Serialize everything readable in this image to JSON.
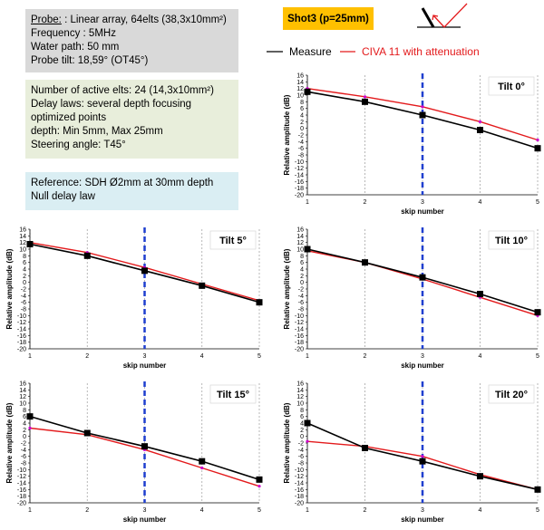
{
  "info": {
    "probe": {
      "label": "Probe:",
      "rest": " : Linear array, 64elts (38,3x10mm²)",
      "lines": [
        "Frequency : 5MHz",
        "Water path: 50 mm",
        "Probe tilt: 18,59° (OT45°)"
      ]
    },
    "active": {
      "lines": [
        "Number of active elts: 24 (14,3x10mm²)",
        "Delay laws: several depth focusing",
        "optimized points",
        "depth: Min 5mm, Max 25mm",
        "Steering angle: T45°"
      ]
    },
    "reference": {
      "lines": [
        "Reference: SDH Ø2mm at 30mm depth",
        "Null delay law"
      ]
    },
    "shot_label": "Shot3 (p=25mm)"
  },
  "legend": {
    "measure": "Measure",
    "civa": "CIVA 11 with attenuation"
  },
  "colors": {
    "measure": "#000000",
    "civa": "#e31a1c",
    "civa_marker": "#cc00cc",
    "marker_line": "#1f3fcf",
    "grid": "#a6a6a6",
    "shot_bg": "#ffc000",
    "probe_bg": "#d9d9d9",
    "active_bg": "#e8eedb",
    "ref_bg": "#daeef3"
  },
  "chart_data": [
    {
      "type": "line",
      "title": "Tilt 0°",
      "xlabel": "skip number",
      "ylabel": "Relative amplitude (dB)",
      "x": [
        1,
        2,
        3,
        4,
        5
      ],
      "ylim": [
        -20,
        16
      ],
      "yticks": [
        16,
        14,
        12,
        10,
        8,
        6,
        4,
        2,
        0,
        -2,
        -4,
        -6,
        -8,
        -10,
        -12,
        -14,
        -16,
        -18,
        -20
      ],
      "marker_x": 3,
      "series": [
        {
          "name": "Measure",
          "values": [
            11,
            8,
            4,
            -0.5,
            -6
          ]
        },
        {
          "name": "CIVA 11 with attenuation",
          "values": [
            12,
            9.5,
            6.5,
            2,
            -3.5
          ]
        }
      ]
    },
    {
      "type": "line",
      "title": "Tilt 5°",
      "xlabel": "skip number",
      "ylabel": "Relative amplitude (dB)",
      "x": [
        1,
        2,
        3,
        4,
        5
      ],
      "ylim": [
        -20,
        16
      ],
      "yticks": [
        16,
        14,
        12,
        10,
        8,
        6,
        4,
        2,
        0,
        -2,
        -4,
        -6,
        -8,
        -10,
        -12,
        -14,
        -16,
        -18,
        -20
      ],
      "marker_x": 3,
      "series": [
        {
          "name": "Measure",
          "values": [
            11.5,
            8,
            3.5,
            -1,
            -6
          ]
        },
        {
          "name": "CIVA 11 with attenuation",
          "values": [
            12,
            9,
            4.5,
            -0.5,
            -5.5
          ]
        }
      ]
    },
    {
      "type": "line",
      "title": "Tilt 10°",
      "xlabel": "skip number",
      "ylabel": "Relative amplitude (dB)",
      "x": [
        1,
        2,
        3,
        4,
        5
      ],
      "ylim": [
        -20,
        16
      ],
      "yticks": [
        16,
        14,
        12,
        10,
        8,
        6,
        4,
        2,
        0,
        -2,
        -4,
        -6,
        -8,
        -10,
        -12,
        -14,
        -16,
        -18,
        -20
      ],
      "marker_x": 3,
      "series": [
        {
          "name": "Measure",
          "values": [
            10,
            6,
            1.5,
            -3.5,
            -9
          ]
        },
        {
          "name": "CIVA 11 with attenuation",
          "values": [
            9.5,
            6,
            1,
            -4.5,
            -10
          ]
        }
      ]
    },
    {
      "type": "line",
      "title": "Tilt 15°",
      "xlabel": "skip number",
      "ylabel": "Relative amplitude (dB)",
      "x": [
        1,
        2,
        3,
        4,
        5
      ],
      "ylim": [
        -20,
        16
      ],
      "yticks": [
        16,
        14,
        12,
        10,
        8,
        6,
        4,
        2,
        0,
        -2,
        -4,
        -6,
        -8,
        -10,
        -12,
        -14,
        -16,
        -18,
        -20
      ],
      "marker_x": 3,
      "series": [
        {
          "name": "Measure",
          "values": [
            6,
            1,
            -3,
            -7.5,
            -13
          ]
        },
        {
          "name": "CIVA 11 with attenuation",
          "values": [
            2.5,
            0.5,
            -4,
            -9.5,
            -15
          ]
        }
      ]
    },
    {
      "type": "line",
      "title": "Tilt 20°",
      "xlabel": "skip number",
      "ylabel": "Relative amplitude (dB)",
      "x": [
        1,
        2,
        3,
        4,
        5
      ],
      "ylim": [
        -20,
        16
      ],
      "yticks": [
        16,
        14,
        12,
        10,
        8,
        6,
        4,
        2,
        0,
        -2,
        -4,
        -6,
        -8,
        -10,
        -12,
        -14,
        -16,
        -18,
        -20
      ],
      "marker_x": 3,
      "series": [
        {
          "name": "Measure",
          "values": [
            4,
            -3.5,
            -7.5,
            -12,
            -16
          ]
        },
        {
          "name": "CIVA 11 with attenuation",
          "values": [
            -1.5,
            -3,
            -6,
            -11.5,
            -16
          ]
        }
      ]
    }
  ]
}
